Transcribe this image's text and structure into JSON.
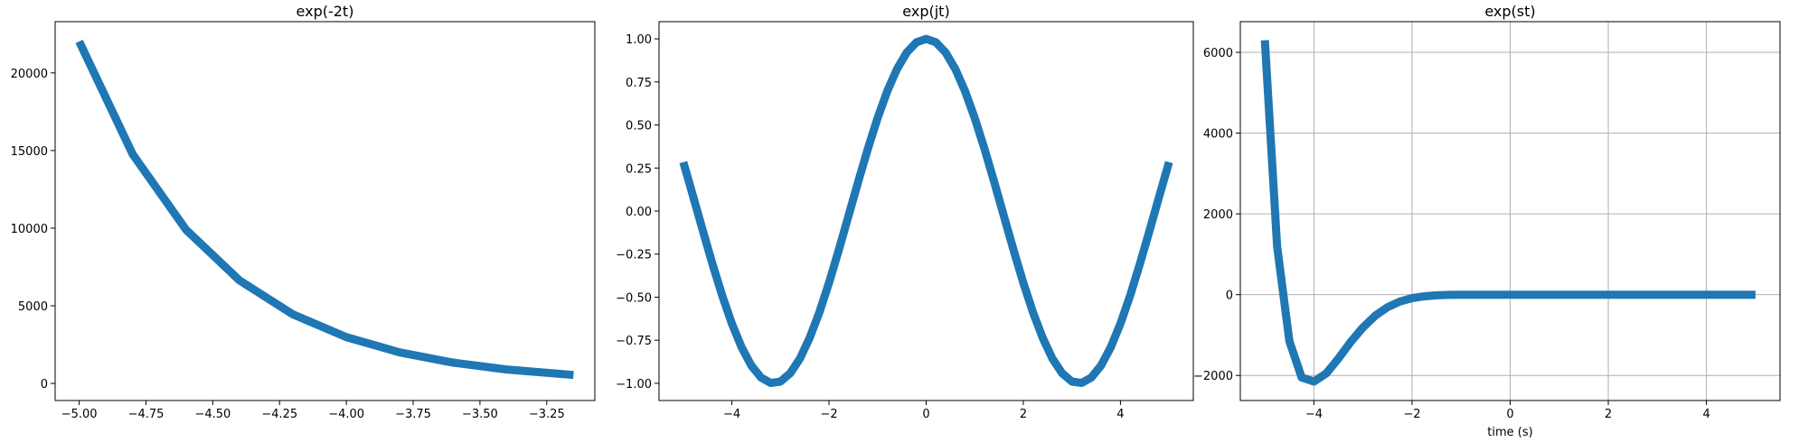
{
  "chart_data": [
    {
      "type": "line",
      "title": "exp(-2t)",
      "xlabel": "",
      "ylabel": "",
      "grid": false,
      "color": "#1f77b4",
      "xlim": [
        -5.09,
        -3.07
      ],
      "ylim": [
        -1100,
        23300
      ],
      "xticks": [
        -5.0,
        -4.75,
        -4.5,
        -4.25,
        -4.0,
        -3.75,
        -3.5,
        -3.25
      ],
      "xtick_labels": [
        "−5.00",
        "−4.75",
        "−4.50",
        "−4.25",
        "−4.00",
        "−3.75",
        "−3.50",
        "−3.25"
      ],
      "yticks": [
        0,
        5000,
        10000,
        15000,
        20000
      ],
      "ytick_labels": [
        "0",
        "5000",
        "10000",
        "15000",
        "20000"
      ],
      "x": [
        -5.0,
        -4.8,
        -4.6,
        -4.4,
        -4.2,
        -4.0,
        -3.8,
        -3.6,
        -3.4,
        -3.15
      ],
      "y": [
        22026,
        14765,
        9897,
        6634,
        4447,
        2981,
        1998,
        1339,
        898,
        545
      ]
    },
    {
      "type": "line",
      "title": "exp(jt)",
      "xlabel": "",
      "ylabel": "",
      "grid": false,
      "color": "#1f77b4",
      "xlim": [
        -5.5,
        5.5
      ],
      "ylim": [
        -1.1,
        1.1
      ],
      "xticks": [
        -4,
        -2,
        0,
        2,
        4
      ],
      "xtick_labels": [
        "−4",
        "−2",
        "0",
        "2",
        "4"
      ],
      "yticks": [
        -1.0,
        -0.75,
        -0.5,
        -0.25,
        0.0,
        0.25,
        0.5,
        0.75,
        1.0
      ],
      "ytick_labels": [
        "−1.00",
        "−0.75",
        "−0.50",
        "−0.25",
        "0.00",
        "0.25",
        "0.50",
        "0.75",
        "1.00"
      ],
      "x": [
        -5.0,
        -4.8,
        -4.6,
        -4.4,
        -4.2,
        -4.0,
        -3.8,
        -3.6,
        -3.4,
        -3.2,
        -3.0,
        -2.8,
        -2.6,
        -2.4,
        -2.2,
        -2.0,
        -1.8,
        -1.6,
        -1.4,
        -1.2,
        -1.0,
        -0.8,
        -0.6,
        -0.4,
        -0.2,
        0.0,
        0.2,
        0.4,
        0.6,
        0.8,
        1.0,
        1.2,
        1.4,
        1.6,
        1.8,
        2.0,
        2.2,
        2.4,
        2.6,
        2.8,
        3.0,
        3.2,
        3.4,
        3.6,
        3.8,
        4.0,
        4.2,
        4.4,
        4.6,
        4.8,
        5.0
      ],
      "y": [
        0.284,
        0.087,
        -0.112,
        -0.307,
        -0.49,
        -0.654,
        -0.791,
        -0.897,
        -0.967,
        -0.998,
        -0.99,
        -0.942,
        -0.857,
        -0.737,
        -0.589,
        -0.416,
        -0.227,
        -0.029,
        0.17,
        0.362,
        0.54,
        0.697,
        0.825,
        0.921,
        0.98,
        1.0,
        0.98,
        0.921,
        0.825,
        0.697,
        0.54,
        0.362,
        0.17,
        -0.029,
        -0.227,
        -0.416,
        -0.589,
        -0.737,
        -0.857,
        -0.942,
        -0.99,
        -0.998,
        -0.967,
        -0.897,
        -0.791,
        -0.654,
        -0.49,
        -0.307,
        -0.112,
        0.087,
        0.284
      ]
    },
    {
      "type": "line",
      "title": "exp(st)",
      "xlabel": "time (s)",
      "ylabel": "",
      "grid": true,
      "color": "#1f77b4",
      "xlim": [
        -5.5,
        5.5
      ],
      "ylim": [
        -2620,
        6760
      ],
      "xticks": [
        -4,
        -2,
        0,
        2,
        4
      ],
      "xtick_labels": [
        "−4",
        "−2",
        "0",
        "2",
        "4"
      ],
      "yticks": [
        -2000,
        0,
        2000,
        4000,
        6000
      ],
      "ytick_labels": [
        "−2000",
        "0",
        "2000",
        "4000",
        "6000"
      ],
      "x": [
        -5.0,
        -4.75,
        -4.5,
        -4.25,
        -4.0,
        -3.75,
        -3.5,
        -3.25,
        -3.0,
        -2.75,
        -2.5,
        -2.25,
        -2.0,
        -1.75,
        -1.5,
        -1.25,
        -1.0,
        0.0,
        1.0,
        2.0,
        3.0,
        4.0,
        5.0
      ],
      "y": [
        6300,
        1200,
        -1150,
        -2050,
        -2150,
        -1950,
        -1580,
        -1170,
        -810,
        -520,
        -310,
        -170,
        -85,
        -40,
        -15,
        -5,
        0,
        0,
        0,
        0,
        0,
        0,
        0
      ]
    }
  ]
}
